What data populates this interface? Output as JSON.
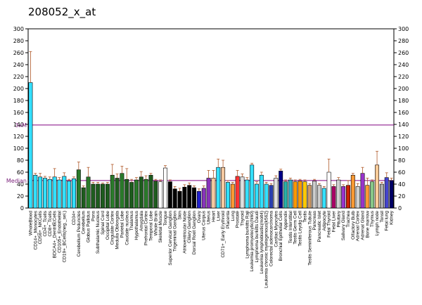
{
  "chart_data": {
    "type": "bar",
    "title": "208052_x_at",
    "ylim": [
      0,
      300
    ],
    "yticks": [
      0,
      20,
      40,
      60,
      80,
      100,
      120,
      140,
      160,
      180,
      200,
      220,
      240,
      260,
      280,
      300
    ],
    "grid": false,
    "reference_lines": [
      {
        "label": "3xM",
        "value": 139,
        "color": "#800080"
      },
      {
        "label": "Median",
        "value": 46,
        "color": "#800080"
      }
    ],
    "categories": [
      "WholeBlood",
      "CD14+_Monocytes",
      "CD56+_NKCells",
      "CD4+_Tcells",
      "CD8+_Tcells",
      "BDCA4+_DentriticCells",
      "CD105+_Endothelial",
      "CD19+_BCells(neg._sel.)",
      "CD71+_EarlyErythroid",
      "CD34+",
      "Cerebellum Peduncles",
      "Cerebellum",
      "Globus Pallidus",
      "Pons",
      "Subthalamic Nucleus",
      "Spinal Cord",
      "Occipital Lobe",
      "Cingulate Cortex",
      "Medulla Oblongata",
      "Parietal Lobe",
      "Caudate nucleus",
      "Thalamus",
      "Hypothalamus",
      "Amygdala",
      "Prefrontal Cortex",
      "Temporal Lobe",
      "Whole Brain",
      "Skeletal Muscle",
      "Tongue",
      "Superior Cervical Ganglion",
      "Trigeminal Ganglion",
      "Skin",
      "Atrioventricular Node",
      "Ciliary Ganglion",
      "Dorsal Root Ganglion",
      "Ovary",
      "Uterus Corpus",
      "Uterus",
      "Heart",
      "Liver",
      "CD71+_Early Erythroid",
      "Placenta",
      "Lung",
      "Prostate",
      "Thyroid",
      "Lymphoma burkitts Raji",
      "Leukemia promyelocytic(hl60)",
      "Lymphoma burkitts Daudi",
      "Leukemia lymphoblastic(molt4)",
      "Leukemia chronic myelogenous(k562)",
      "Colorectal adenocarcinoma",
      "Cardiac Myocytes",
      "Bronchial Epithelial Cells",
      "Appendix",
      "Testis Interstitial",
      "Testis Germ Cell",
      "Testis Leydig Cell",
      "Testis",
      "Testis Seminiferous Tubule",
      "Pancreas",
      "Pancreatic Islet",
      "Adipocyte",
      "Fetal Thyroid",
      "Fetal Liver",
      "Pituitary",
      "Salivary Gland",
      "Trachea",
      "Olfactory Bulb",
      "Adrenal Cortex",
      "Adrenal Gland",
      "Bone marrow",
      "Thymus",
      "Lymph node",
      "Tonsil",
      "Fetal lung",
      "Kidney"
    ],
    "category_labels_visible": [
      "WholeBlood",
      "CD14+_Monocytes",
      "CD56+_NKCells",
      "CD4+_Tcells",
      "CD8+_Tcells",
      "BDCA4+_DentriticCells",
      "CD105+_Endothelial",
      "CD19+_BCells(neg._sel.)",
      "",
      "CD34+",
      "Cerebellum Peduncles",
      "Cerebellum",
      "Globus Pallidus",
      "Pons",
      "Subthalamic Nucleus",
      "Spinal Cord",
      "Occipital Lobe",
      "Cingulate Cortex",
      "Medulla Oblongata",
      "Parietal Lobe",
      "Caudate nucleus",
      "Thalamus",
      "Hypothalamus",
      "Amygdala",
      "Prefrontal Cortex",
      "Temporal Lobe",
      "Whole Brain",
      "Skeletal Muscle",
      "Tongue",
      "Superior Cervical Ganglion",
      "Trigeminal Ganglion",
      "Skin",
      "Atrioventricular Node",
      "Ciliary Ganglion",
      "Dorsal Root Ganglion",
      "Ovary",
      "Uterus Corpus",
      "Uterus",
      "Heart",
      "Liver",
      "CD71+_Early Erythroid",
      "Placenta",
      "Lung",
      "Prostate",
      "Thyroid",
      "Lymphoma burkitts Raji",
      "Leukemia promyelocytic(hl60)",
      "Lymphoma burkitts Daudi",
      "Leukemia lymphoblastic(molt4)",
      "Leukemia chronic myelogenous(k562)",
      "Colorectal adenocarcinoma",
      "Cardiac Myocytes",
      "Bronchial Epithelial Cells",
      "Appendix",
      "Testis Interstitial",
      "Testis Germ Cell",
      "Testis Leydig Cell",
      "Testis",
      "Testis Seminiferous Tubule",
      "Pancreas",
      "Pancreatic Islet",
      "Adipocyte",
      "Fetal Thyroid",
      "Fetal Liver",
      "Pituitary",
      "Salivary Gland",
      "Trachea",
      "Olfactory Bulb",
      "Adrenal Cortex",
      "Adrenal Gland",
      "Bone marrow",
      "Thymus",
      "Lymph node",
      "Tonsil",
      "Fetal lung",
      "Kidney"
    ],
    "values": [
      210,
      55,
      52,
      50,
      48,
      52,
      47,
      53,
      45,
      49,
      64,
      34,
      52,
      40,
      40,
      40,
      40,
      55,
      50,
      58,
      48,
      43,
      47,
      52,
      48,
      55,
      45,
      44,
      67,
      44,
      32,
      28,
      35,
      38,
      34,
      28,
      33,
      50,
      50,
      68,
      68,
      43,
      40,
      53,
      52,
      47,
      72,
      40,
      55,
      40,
      38,
      50,
      62,
      44,
      47,
      44,
      45,
      44,
      38,
      45,
      38,
      33,
      60,
      36,
      47,
      36,
      38,
      55,
      36,
      58,
      38,
      44,
      72,
      40,
      51,
      46
    ],
    "errors": [
      52,
      3,
      6,
      3,
      4,
      14,
      4,
      6,
      3,
      3,
      13,
      3,
      16,
      3,
      3,
      2,
      3,
      18,
      7,
      12,
      18,
      5,
      4,
      9,
      6,
      3,
      3,
      3,
      4,
      3,
      4,
      5,
      4,
      4,
      3,
      4,
      4,
      13,
      13,
      14,
      12,
      3,
      3,
      10,
      5,
      4,
      3,
      4,
      5,
      3,
      3,
      4,
      3,
      3,
      3,
      3,
      3,
      3,
      3,
      3,
      3,
      3,
      22,
      3,
      4,
      3,
      8,
      3,
      5,
      10,
      12,
      3,
      23,
      3,
      8,
      4
    ],
    "colors": [
      "#33e0ff",
      "#33e0ff",
      "#33e0ff",
      "#33e0ff",
      "#33e0ff",
      "#33e0ff",
      "#33e0ff",
      "#33e0ff",
      "#33e0ff",
      "#33e0ff",
      "#2a7a2a",
      "#1e5c1e",
      "#2a7a2a",
      "#1e5c1e",
      "#1e5c1e",
      "#1e5c1e",
      "#1e5c1e",
      "#2a7a2a",
      "#1e5c1e",
      "#2a7a2a",
      "#1e5c1e",
      "#1e5c1e",
      "#2a7a2a",
      "#1e5c1e",
      "#2a7a2a",
      "#1e5c1e",
      "#1e5c1e",
      "#ffffff",
      "#ffffff",
      "#000000",
      "#000000",
      "#000000",
      "#000000",
      "#000000",
      "#000000",
      "#1f1fcc",
      "#8833bb",
      "#8833bb",
      "#f5c9a0",
      "#33e0ff",
      "#f5c9a0",
      "#33e0ff",
      "#ff9933",
      "#ff3333",
      "#e0e0e0",
      "#33e0ff",
      "#33e0ff",
      "#33e0ff",
      "#33e0ff",
      "#33e0ff",
      "#2a3fb0",
      "#e0e0e0",
      "#000088",
      "#2ab0a8",
      "#33b0c8",
      "#ff9900",
      "#ff9900",
      "#ffcc00",
      "#cc9966",
      "#cccccc",
      "#cccccc",
      "#33e0ff",
      "#ffffff",
      "#aa0066",
      "#d0d0d0",
      "#9933cc",
      "#cc2200",
      "#ff9933",
      "#d0d0d0",
      "#9933cc",
      "#ff9933",
      "#88c888",
      "#ffcc99",
      "#aaaaaa",
      "#4444cc",
      "#000066"
    ]
  }
}
